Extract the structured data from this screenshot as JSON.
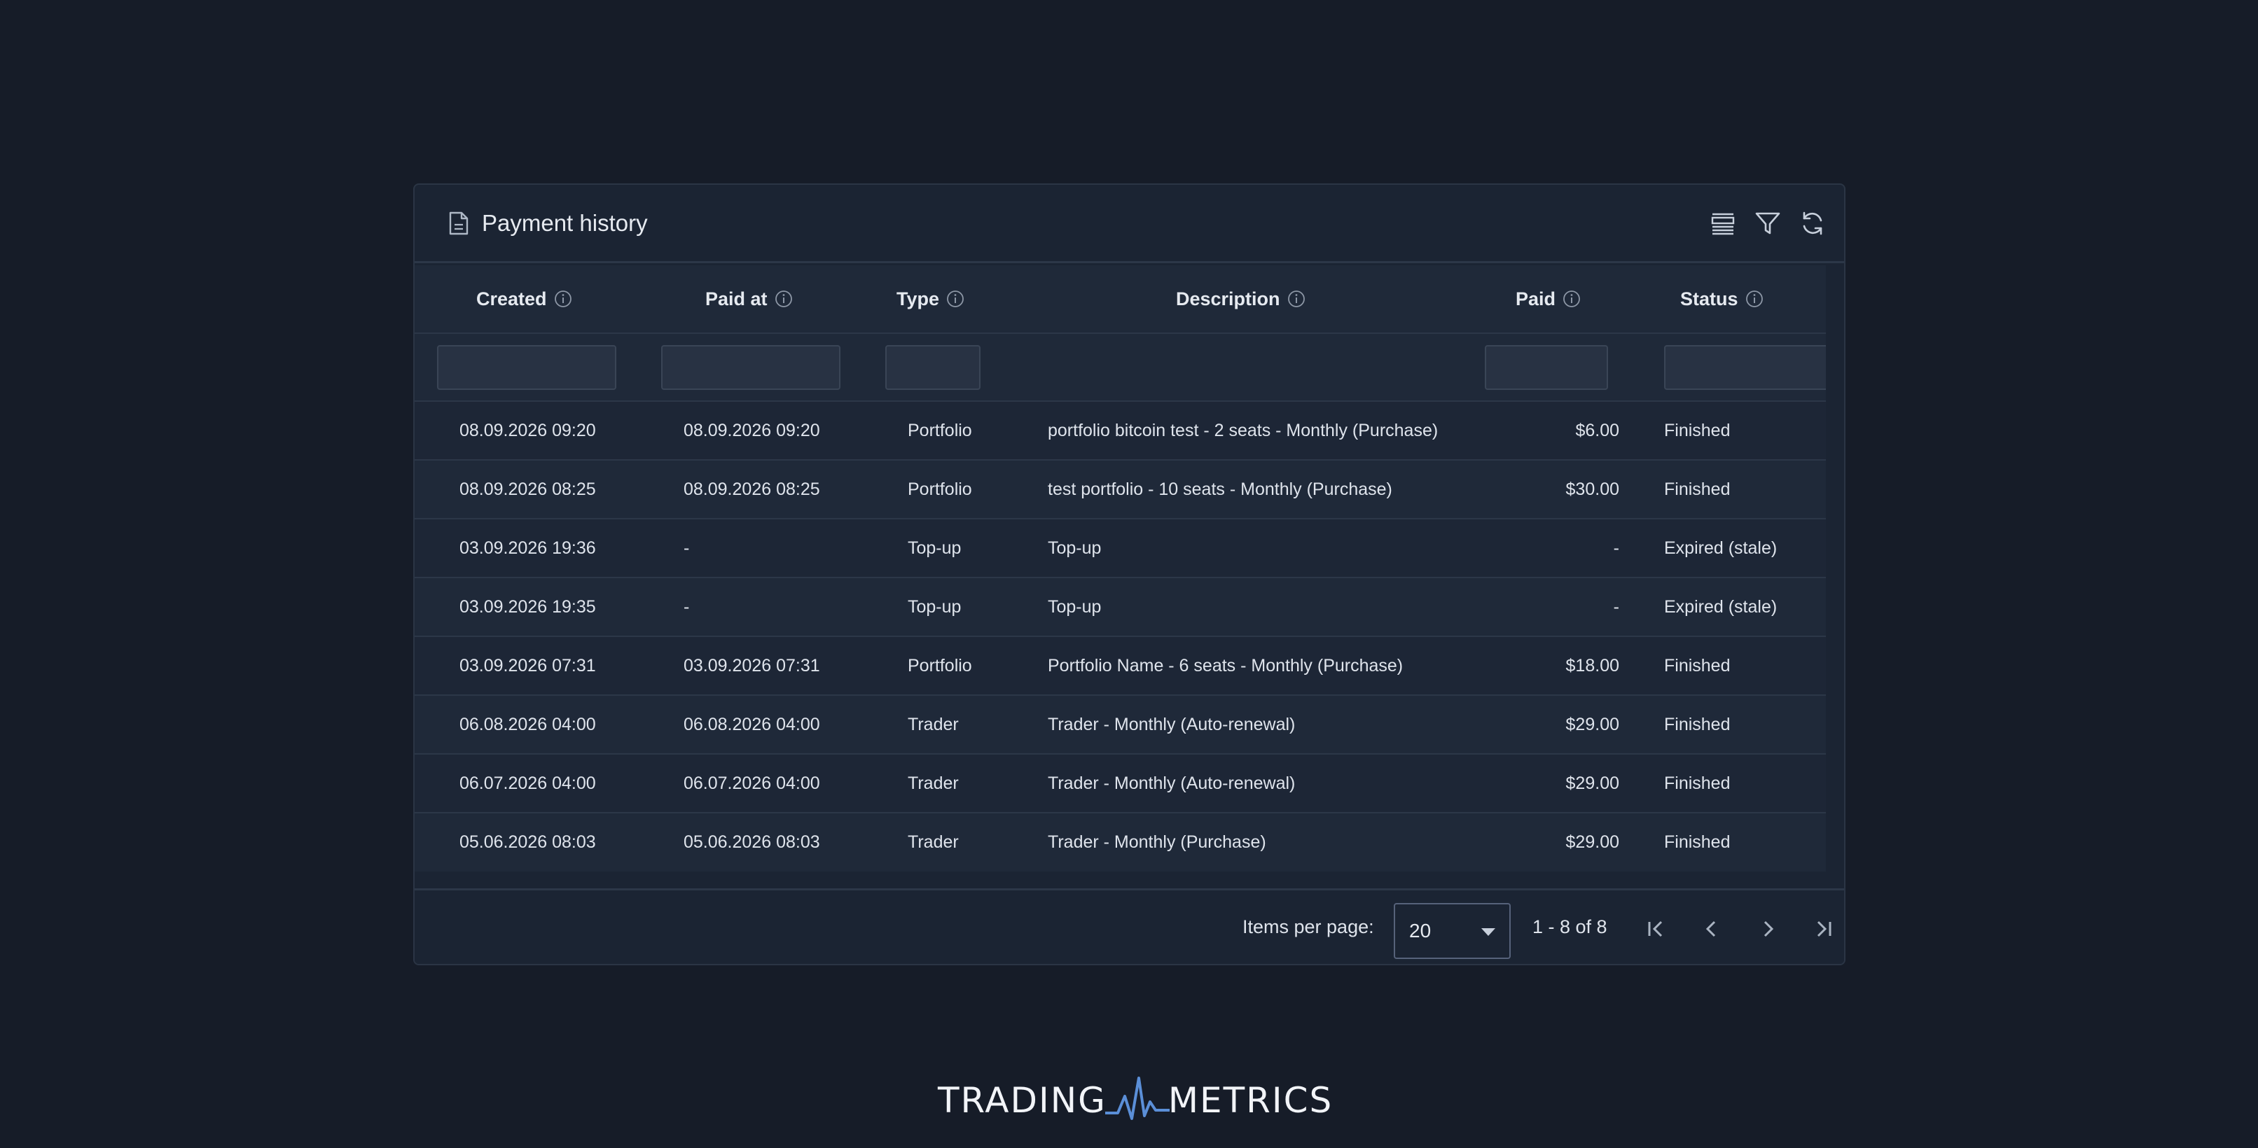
{
  "card": {
    "title": "Payment history",
    "title_icon": "document-icon",
    "toolbar": {
      "density_icon": "density-icon",
      "filter_icon": "filter-icon",
      "refresh_icon": "refresh-icon"
    }
  },
  "table": {
    "columns": [
      {
        "label": "Created",
        "info_icon": "info-icon",
        "filterable": true
      },
      {
        "label": "Paid at",
        "info_icon": "info-icon",
        "filterable": true
      },
      {
        "label": "Type",
        "info_icon": "info-icon",
        "filterable": true
      },
      {
        "label": "Description",
        "info_icon": "info-icon",
        "filterable": false
      },
      {
        "label": "Paid",
        "info_icon": "info-icon",
        "filterable": true
      },
      {
        "label": "Status",
        "info_icon": "info-icon",
        "filterable": true
      }
    ],
    "filters": {
      "created": "",
      "paid_at": "",
      "type": "",
      "paid": "",
      "status": ""
    },
    "rows": [
      {
        "created": "08.09.2026 09:20",
        "paid_at": "08.09.2026 09:20",
        "type": "Portfolio",
        "description": "portfolio bitcoin test - 2 seats - Monthly (Purchase)",
        "paid": "$6.00",
        "status": "Finished"
      },
      {
        "created": "08.09.2026 08:25",
        "paid_at": "08.09.2026 08:25",
        "type": "Portfolio",
        "description": "test portfolio - 10 seats - Monthly (Purchase)",
        "paid": "$30.00",
        "status": "Finished"
      },
      {
        "created": "03.09.2026 19:36",
        "paid_at": "-",
        "type": "Top-up",
        "description": "Top-up",
        "paid": "-",
        "status": "Expired (stale)"
      },
      {
        "created": "03.09.2026 19:35",
        "paid_at": "-",
        "type": "Top-up",
        "description": "Top-up",
        "paid": "-",
        "status": "Expired (stale)"
      },
      {
        "created": "03.09.2026 07:31",
        "paid_at": "03.09.2026 07:31",
        "type": "Portfolio",
        "description": "Portfolio Name - 6 seats - Monthly (Purchase)",
        "paid": "$18.00",
        "status": "Finished"
      },
      {
        "created": "06.08.2026 04:00",
        "paid_at": "06.08.2026 04:00",
        "type": "Trader",
        "description": "Trader - Monthly (Auto-renewal)",
        "paid": "$29.00",
        "status": "Finished"
      },
      {
        "created": "06.07.2026 04:00",
        "paid_at": "06.07.2026 04:00",
        "type": "Trader",
        "description": "Trader - Monthly (Auto-renewal)",
        "paid": "$29.00",
        "status": "Finished"
      },
      {
        "created": "05.06.2026 08:03",
        "paid_at": "05.06.2026 08:03",
        "type": "Trader",
        "description": "Trader - Monthly (Purchase)",
        "paid": "$29.00",
        "status": "Finished"
      }
    ]
  },
  "pagination": {
    "items_per_page_label": "Items per page:",
    "items_per_page_value": "20",
    "range_label": "1 - 8 of 8",
    "icons": [
      "first-page-icon",
      "previous-page-icon",
      "next-page-icon",
      "last-page-icon"
    ]
  },
  "logo": {
    "left_text": "TRADING",
    "right_text": "METRICS",
    "mark_icon": "pulse-logo-icon"
  },
  "colors": {
    "page_bg": "#161c28",
    "card_bg": "#1b2433",
    "row_bg": "#1f2939",
    "text": "#dfe4ec",
    "logo_accent": "#5b8fd8"
  }
}
